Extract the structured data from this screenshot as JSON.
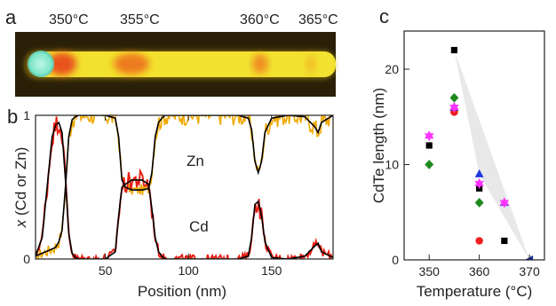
{
  "panel_a": {
    "letter": "a",
    "temperature_labels": [
      "350°C",
      "355°C",
      "360°C",
      "365°C"
    ],
    "colors": {
      "background": "#2a2008",
      "body": "#f2e12e",
      "cap": "#7fe7c9",
      "band": "#e8521c"
    }
  },
  "panel_b": {
    "letter": "b",
    "series_labels": [
      "Zn",
      "Cd"
    ]
  },
  "panel_c": {
    "letter": "c"
  },
  "chart_data": [
    {
      "type": "line",
      "xlabel": "Position (nm)",
      "ylabel_text": "x (Cd or Zn)",
      "ylabel_italic_part": "x",
      "ylabel_rest": " (Cd or Zn)",
      "xlim": [
        8,
        187
      ],
      "ylim": [
        0,
        1
      ],
      "x_ticks": [
        50,
        100,
        150
      ],
      "y_ticks": [
        0,
        1
      ],
      "grid": false,
      "colors": {
        "Zn_data": "#f0a800",
        "Cd_data": "#e81c10",
        "fit": "#000000"
      },
      "series": [
        {
          "name": "Zn",
          "x": [
            8,
            12,
            16,
            20,
            22,
            24,
            26,
            28,
            30,
            32,
            34,
            36,
            40,
            50,
            56,
            58,
            60,
            62,
            66,
            72,
            76,
            78,
            80,
            82,
            84,
            86,
            90,
            100,
            110,
            120,
            130,
            136,
            138,
            140,
            142,
            144,
            146,
            150,
            160,
            170,
            176,
            178,
            180,
            187
          ],
          "values": [
            0.02,
            0.04,
            0.06,
            0.08,
            0.12,
            0.2,
            0.5,
            0.85,
            0.97,
            0.99,
            1.0,
            1.0,
            1.0,
            1.0,
            0.98,
            0.85,
            0.55,
            0.5,
            0.48,
            0.48,
            0.49,
            0.6,
            0.85,
            0.95,
            0.98,
            1.0,
            1.0,
            1.0,
            1.0,
            1.0,
            1.0,
            0.98,
            0.9,
            0.68,
            0.6,
            0.68,
            0.88,
            0.98,
            1.0,
            0.99,
            0.92,
            0.88,
            0.95,
            1.0
          ]
        },
        {
          "name": "Cd",
          "x": [
            8,
            12,
            16,
            18,
            20,
            22,
            24,
            26,
            28,
            30,
            32,
            34,
            36,
            40,
            50,
            56,
            58,
            60,
            62,
            66,
            72,
            76,
            78,
            80,
            82,
            84,
            86,
            90,
            100,
            110,
            120,
            130,
            136,
            138,
            140,
            142,
            144,
            146,
            150,
            160,
            170,
            176,
            178,
            180,
            187
          ],
          "values": [
            0.02,
            0.15,
            0.62,
            0.85,
            0.93,
            0.95,
            0.88,
            0.55,
            0.18,
            0.04,
            0.01,
            0.0,
            0.0,
            0.0,
            0.0,
            0.05,
            0.3,
            0.5,
            0.52,
            0.55,
            0.55,
            0.52,
            0.35,
            0.15,
            0.05,
            0.02,
            0.0,
            0.0,
            0.0,
            0.0,
            0.0,
            0.0,
            0.02,
            0.15,
            0.38,
            0.4,
            0.3,
            0.12,
            0.01,
            0.0,
            0.02,
            0.09,
            0.11,
            0.05,
            0.01
          ]
        }
      ]
    },
    {
      "type": "scatter",
      "xlabel": "Temperature (°C)",
      "ylabel": "CdTe length (nm)",
      "xlim": [
        345,
        373
      ],
      "ylim": [
        0,
        24
      ],
      "x_ticks": [
        350,
        360,
        370
      ],
      "y_ticks": [
        0,
        10,
        20
      ],
      "grid": false,
      "series": [
        {
          "name": "",
          "marker": "square",
          "color": "#000000",
          "x": [
            350,
            355,
            360,
            365
          ],
          "values": [
            12,
            22,
            7.5,
            2
          ]
        },
        {
          "name": "",
          "marker": "circle",
          "color": "#ee2020",
          "x": [
            355,
            360
          ],
          "values": [
            15.5,
            2
          ]
        },
        {
          "name": "",
          "marker": "diamond",
          "color": "#1d8a1d",
          "x": [
            350,
            355,
            360
          ],
          "values": [
            10,
            17,
            6
          ]
        },
        {
          "name": "",
          "marker": "triangle-up",
          "color": "#1f3ae0",
          "x": [
            355,
            360,
            365
          ],
          "values": [
            16,
            9,
            6
          ]
        },
        {
          "name": "",
          "marker": "star",
          "color": "#ff33ff",
          "x": [
            350,
            355,
            360,
            365
          ],
          "values": [
            13,
            16,
            8,
            6
          ]
        },
        {
          "name": "",
          "marker": "triangle-left",
          "color": "#1a2aa0",
          "x": [
            370
          ],
          "values": [
            0
          ]
        }
      ],
      "shaded_region": {
        "color": "#e8e8e8",
        "x": [
          355,
          360,
          370
        ],
        "values": [
          22,
          9,
          0
        ]
      }
    }
  ]
}
